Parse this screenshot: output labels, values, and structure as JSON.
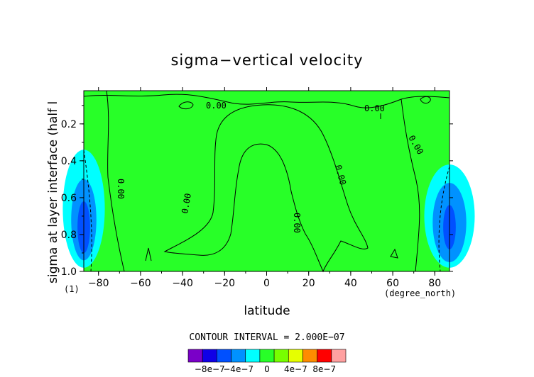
{
  "chart_data": {
    "type": "heatmap",
    "title": "sigma−vertical velocity",
    "xlabel": "latitude",
    "ylabel": "sigma at layer interface (half l",
    "x_unit": "(degree_north)",
    "y_unit": "(1)",
    "xlim": [
      -87,
      87
    ],
    "ylim": [
      0.02,
      1.0
    ],
    "y_inverted": true,
    "x_ticks": [
      -80,
      -60,
      -40,
      -20,
      0,
      20,
      40,
      60,
      80
    ],
    "y_ticks": [
      0.2,
      0.4,
      0.6,
      0.8,
      1.0
    ],
    "x_tick_labels": [
      "−80",
      "−60",
      "−40",
      "−20",
      "0",
      "20",
      "40",
      "60",
      "80"
    ],
    "y_tick_labels": [
      "0.2",
      "0.4",
      "0.6",
      "0.8",
      "1.0"
    ],
    "contour_interval_text": "CONTOUR INTERVAL = 2.000E−07",
    "contour_labels": [
      "0.00",
      "0.00",
      "0.00",
      "0.00",
      "0.00",
      "0.00",
      "0.00"
    ],
    "colorbar": {
      "colors": [
        "#7a00c8",
        "#1000e6",
        "#0050ff",
        "#0092ff",
        "#00ffff",
        "#28ff28",
        "#78ff00",
        "#e6ff00",
        "#ff8c00",
        "#ff0000",
        "#ffa0a0"
      ],
      "tick_labels": [
        "−8e−7",
        "−4e−7",
        "0",
        "4e−7",
        "8e−7"
      ],
      "tick_values": [
        -8e-07,
        -4e-07,
        0,
        4e-07,
        8e-07
      ]
    },
    "background_color": "#28ff28",
    "regions": [
      {
        "level": "0 to 2e-7",
        "color": "#28ff28",
        "extent": "whole domain"
      },
      {
        "level": "-2e-7 to 0",
        "color": "#00ffff",
        "lat": [
          -87,
          -77
        ],
        "sigma": [
          0.34,
          0.98
        ]
      },
      {
        "level": "-4e-7 to -2e-7",
        "color": "#0092ff",
        "lat": [
          -87,
          -81
        ],
        "sigma": [
          0.5,
          0.94
        ]
      },
      {
        "level": "-6e-7 to -4e-7",
        "color": "#0050ff",
        "lat": [
          -87,
          -84
        ],
        "sigma": [
          0.62,
          0.9
        ]
      },
      {
        "level": "-2e-7 to 0",
        "color": "#00ffff",
        "lat": [
          75,
          87
        ],
        "sigma": [
          0.42,
          0.98
        ]
      },
      {
        "level": "-4e-7 to -2e-7",
        "color": "#0092ff",
        "lat": [
          79,
          87
        ],
        "sigma": [
          0.52,
          0.95
        ]
      },
      {
        "level": "-6e-7 to -4e-7",
        "color": "#0050ff",
        "lat": [
          84,
          87
        ],
        "sigma": [
          0.64,
          0.88
        ]
      }
    ]
  }
}
